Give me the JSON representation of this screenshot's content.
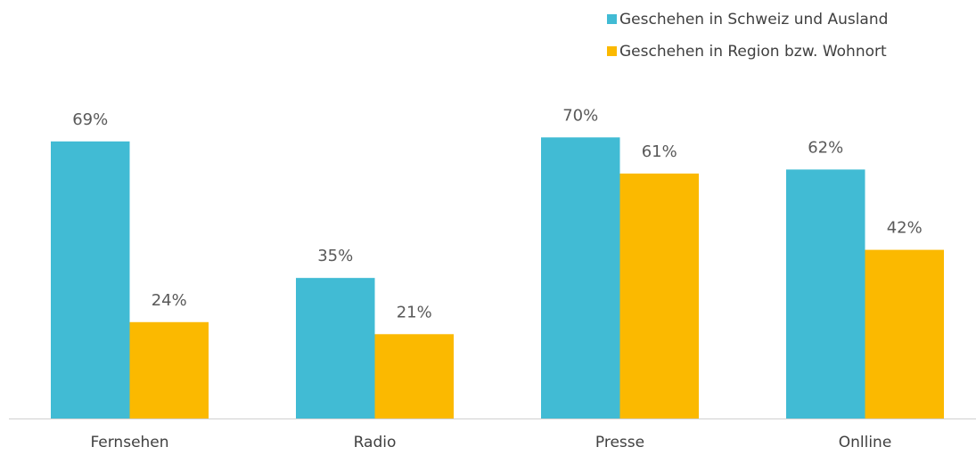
{
  "chart_data": {
    "type": "bar",
    "categories": [
      "Fernsehen",
      "Radio",
      "Presse",
      "Onlline"
    ],
    "series": [
      {
        "name": "Geschehen in Schweiz und Ausland",
        "color": "#41bbd4",
        "values": [
          69,
          35,
          70,
          62
        ],
        "value_labels": [
          "69%",
          "35%",
          "70%",
          "62%"
        ]
      },
      {
        "name": "Geschehen in Region bzw. Wohnort",
        "color": "#fbb900",
        "values": [
          24,
          21,
          61,
          42
        ],
        "value_labels": [
          "24%",
          "21%",
          "61%",
          "42%"
        ]
      }
    ],
    "legend": "top-right"
  }
}
